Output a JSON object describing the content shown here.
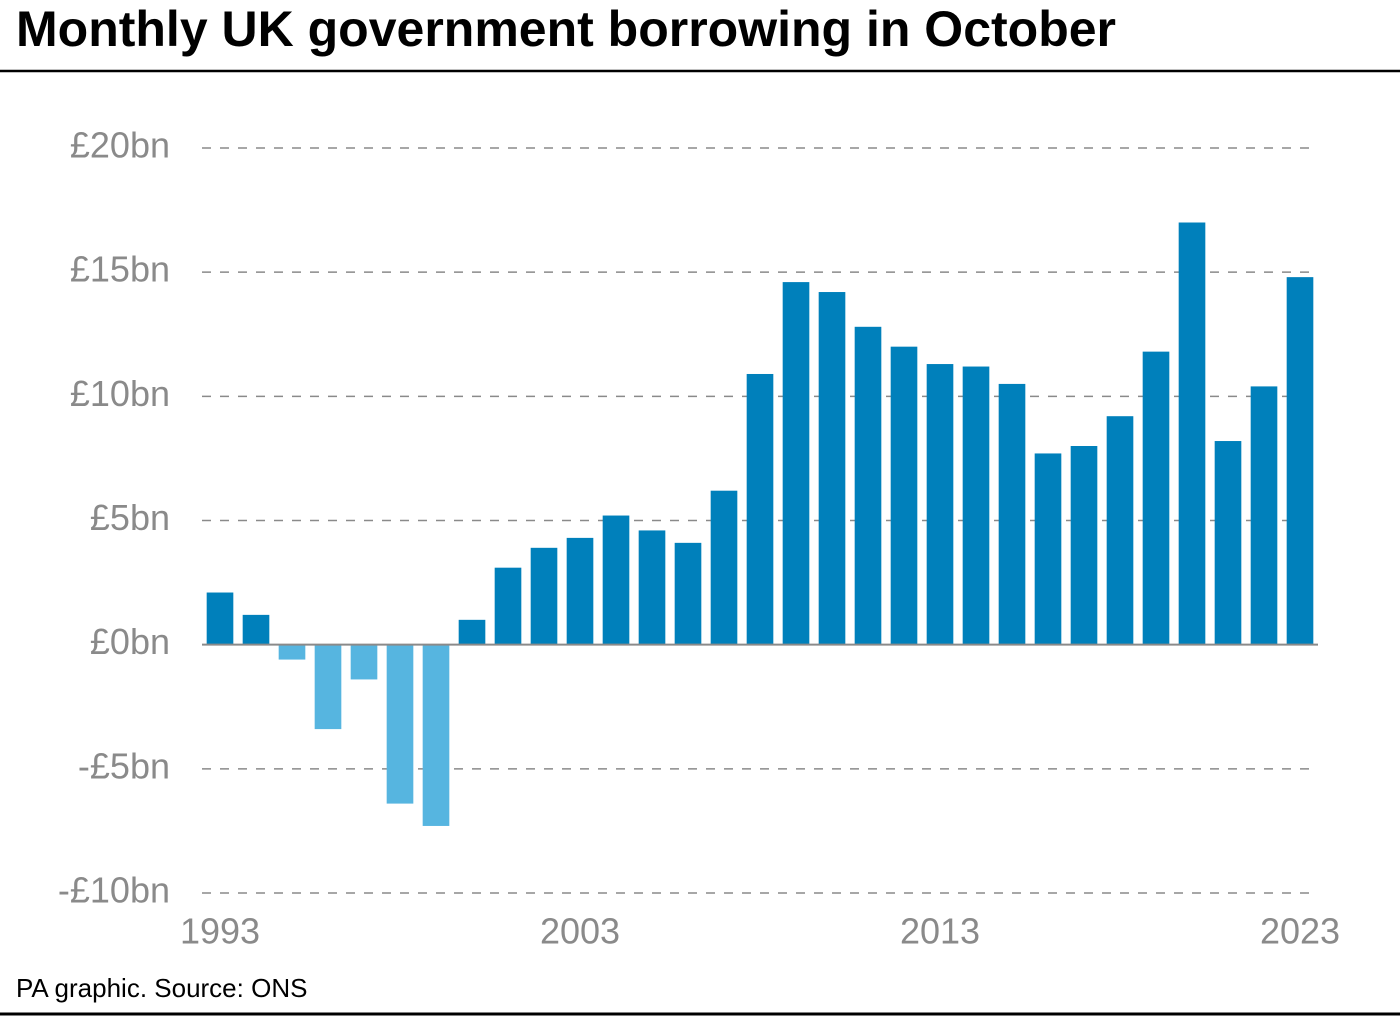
{
  "chart_data": {
    "type": "bar",
    "title": "Monthly UK government borrowing in October",
    "source": "PA graphic. Source: ONS",
    "categories": [
      "1993",
      null,
      null,
      null,
      null,
      null,
      null,
      null,
      null,
      null,
      "2003",
      null,
      null,
      null,
      null,
      null,
      null,
      null,
      null,
      null,
      "2013",
      null,
      null,
      null,
      null,
      null,
      null,
      null,
      null,
      null,
      "2023"
    ],
    "values": [
      2.1,
      1.2,
      -0.6,
      -3.4,
      -1.4,
      -6.4,
      -7.3,
      1.0,
      3.1,
      3.9,
      4.3,
      5.2,
      4.6,
      4.1,
      6.2,
      10.9,
      14.6,
      14.2,
      12.8,
      12.0,
      11.3,
      11.2,
      10.5,
      7.7,
      8.0,
      9.2,
      11.8,
      17.0,
      8.2,
      10.4,
      14.8
    ],
    "color": "#0080bb",
    "negative_color": "#56b5e0",
    "ylim": [
      -10,
      20
    ],
    "yticks": [
      {
        "value": -10,
        "label": "-£10bn"
      },
      {
        "value": -5,
        "label": "-£5bn"
      },
      {
        "value": 0,
        "label": "£0bn"
      },
      {
        "value": 5,
        "label": "£5bn"
      },
      {
        "value": 10,
        "label": "£10bn"
      },
      {
        "value": 15,
        "label": "£15bn"
      },
      {
        "value": 20,
        "label": "£20bn"
      }
    ],
    "grid": true
  }
}
